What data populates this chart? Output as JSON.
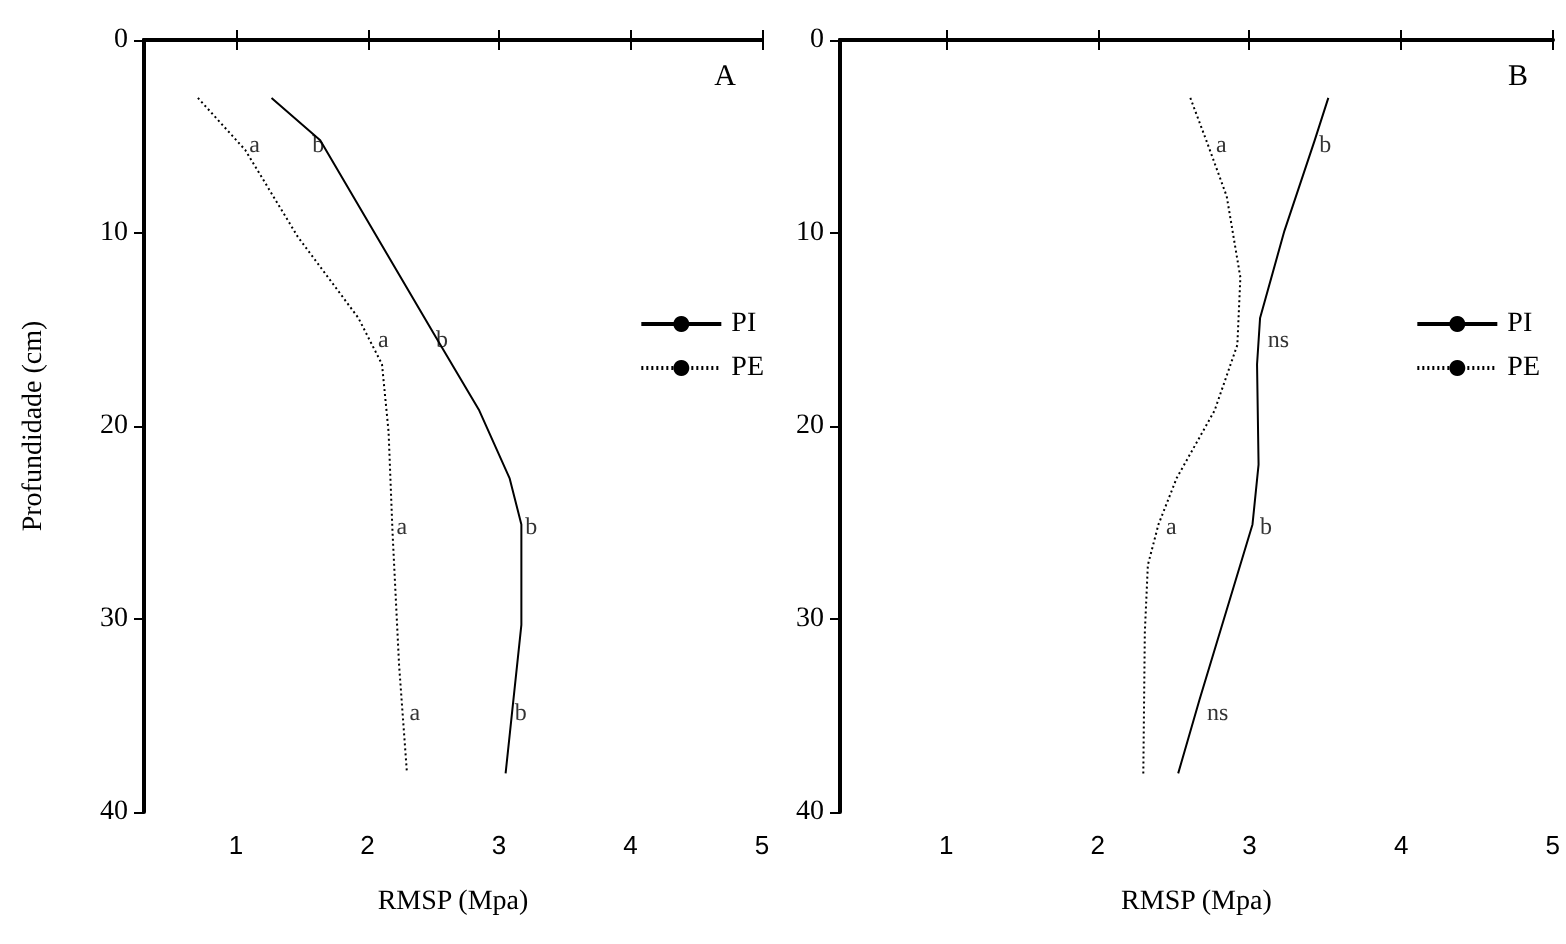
{
  "chart_data": [
    {
      "type": "line",
      "title": "A",
      "xlabel": "RMSP (Mpa)",
      "ylabel": "Profundidade (cm)",
      "xlim": [
        0.3,
        5
      ],
      "xticks": [
        1,
        2,
        3,
        4,
        5
      ],
      "ylim": [
        40,
        0
      ],
      "yticks": [
        0,
        10,
        20,
        30,
        40
      ],
      "legend": "right",
      "grid": false,
      "series": [
        {
          "name": "PI",
          "color": "#000000",
          "line_style": "solid",
          "x": [
            1.27,
            1.64,
            2.52,
            2.85,
            3.08,
            3.17,
            3.17,
            3.05
          ],
          "values": [
            3,
            5.2,
            15.4,
            19.2,
            22.7,
            25.1,
            30.3,
            38
          ]
        },
        {
          "name": "PE",
          "color": "#000000",
          "line_style": "dotted",
          "x": [
            0.71,
            1.07,
            1.47,
            1.93,
            2.11,
            2.16,
            2.19,
            2.24,
            2.3
          ],
          "values": [
            3,
            5.7,
            10.2,
            14.4,
            16.8,
            20.3,
            25.5,
            32.4,
            38
          ]
        }
      ],
      "annotations": [
        {
          "text": "a",
          "x": 1.1,
          "y": 5.4
        },
        {
          "text": "b",
          "x": 1.58,
          "y": 5.4
        },
        {
          "text": "a",
          "x": 2.08,
          "y": 15.5
        },
        {
          "text": "b",
          "x": 2.52,
          "y": 15.5
        },
        {
          "text": "a",
          "x": 2.22,
          "y": 25.2
        },
        {
          "text": "b",
          "x": 3.2,
          "y": 25.2
        },
        {
          "text": "a",
          "x": 2.32,
          "y": 34.8
        },
        {
          "text": "b",
          "x": 3.12,
          "y": 34.8
        }
      ]
    },
    {
      "type": "line",
      "title": "B",
      "xlabel": "RMSP (Mpa)",
      "xlim": [
        0.3,
        5
      ],
      "xticks": [
        1,
        2,
        3,
        4,
        5
      ],
      "ylim": [
        40,
        0
      ],
      "yticks": [
        0,
        10,
        20,
        30,
        40
      ],
      "legend": "right",
      "grid": false,
      "series": [
        {
          "name": "PI",
          "color": "#000000",
          "line_style": "solid",
          "x": [
            3.52,
            3.43,
            3.23,
            3.07,
            3.05,
            3.06,
            3.02,
            2.87,
            2.67,
            2.53
          ],
          "values": [
            3,
            5.2,
            9.9,
            14.4,
            16.8,
            22,
            25.1,
            29,
            34.2,
            38
          ]
        },
        {
          "name": "PE",
          "color": "#000000",
          "line_style": "dotted",
          "x": [
            2.61,
            2.72,
            2.85,
            2.94,
            2.92,
            2.77,
            2.52,
            2.4,
            2.33,
            2.31,
            2.3
          ],
          "values": [
            3,
            5.3,
            8.1,
            12.3,
            15.8,
            19.2,
            22.7,
            25.1,
            27.2,
            30.7,
            38
          ]
        }
      ],
      "annotations": [
        {
          "text": "a",
          "x": 2.78,
          "y": 5.4
        },
        {
          "text": "b",
          "x": 3.46,
          "y": 5.4
        },
        {
          "text": "ns",
          "x": 3.12,
          "y": 15.5
        },
        {
          "text": "a",
          "x": 2.45,
          "y": 25.2
        },
        {
          "text": "b",
          "x": 3.07,
          "y": 25.2
        },
        {
          "text": "ns",
          "x": 2.72,
          "y": 34.8
        }
      ]
    }
  ]
}
